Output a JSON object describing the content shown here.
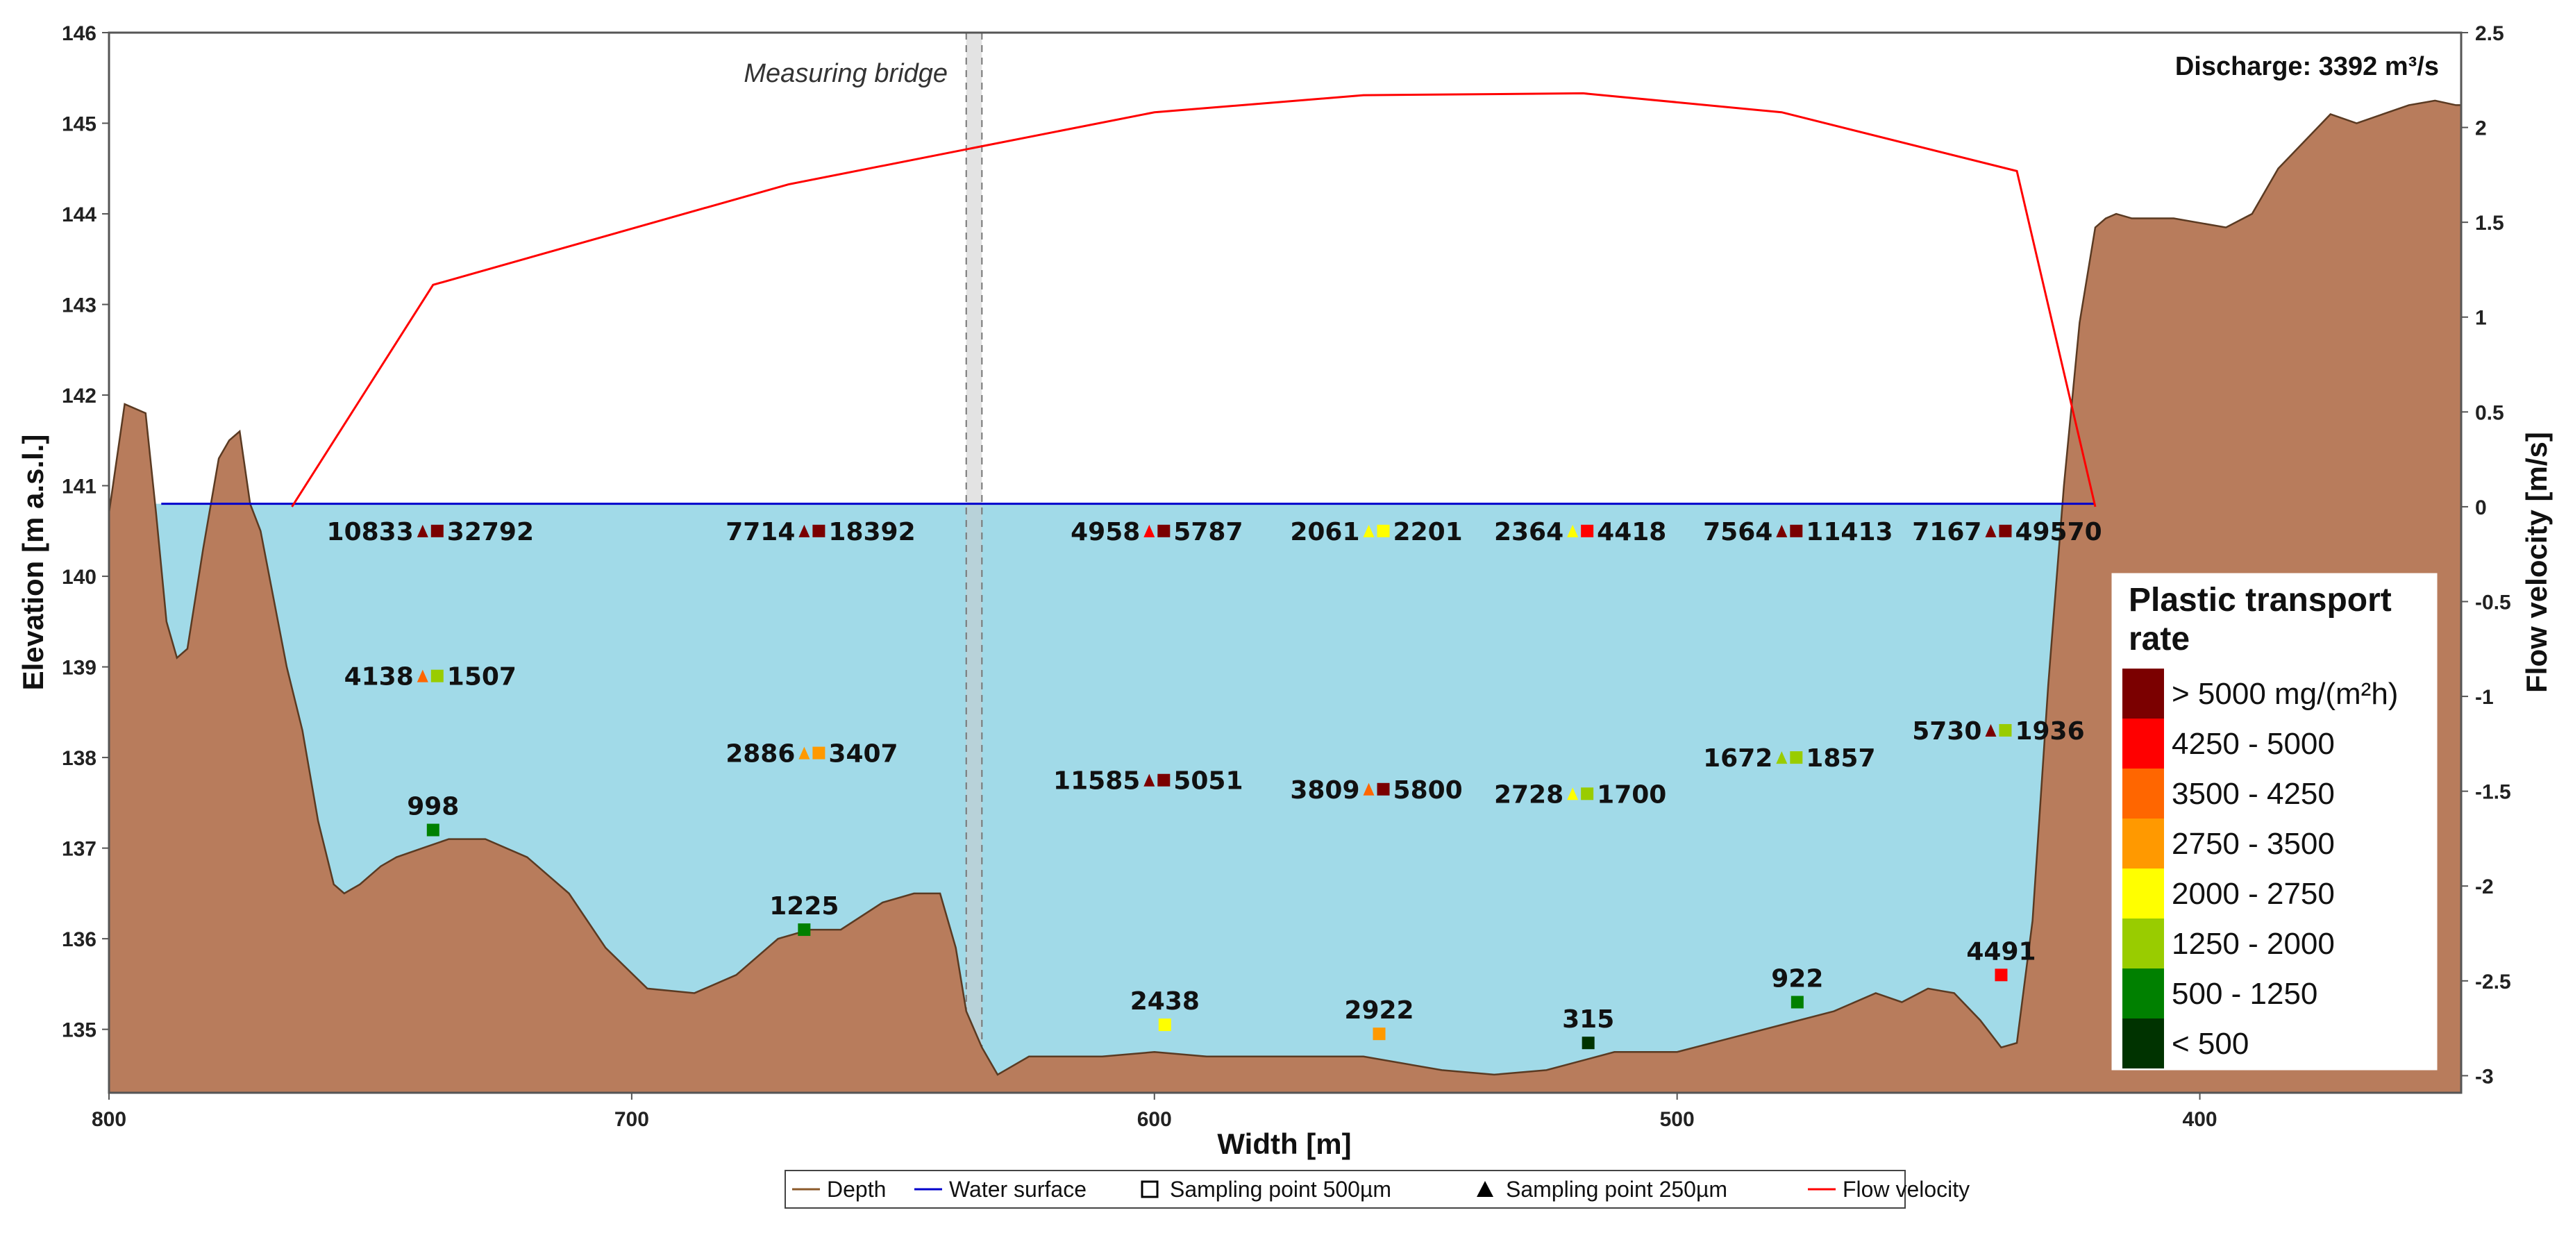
{
  "chart_data": {
    "type": "area",
    "title": "",
    "xlabel": "Width [m]",
    "ylabel": "Elevation [m a.s.l.]",
    "y2label": "Flow velocity [m/s]",
    "xlim": [
      800,
      350
    ],
    "ylim": [
      134.3,
      146
    ],
    "y2lim": [
      -3.09,
      2.5
    ],
    "x_ticks": [
      800,
      700,
      600,
      500,
      400
    ],
    "y_ticks": [
      135,
      136,
      137,
      138,
      139,
      140,
      141,
      142,
      143,
      144,
      145,
      146
    ],
    "y2_ticks": [
      2.5,
      2,
      1.5,
      1,
      0.5,
      0,
      -0.5,
      -1,
      -1.5,
      -2,
      -2.5,
      -3
    ],
    "water_surface_elevation": 140.8,
    "measuring_bridge_x": [
      636,
      633
    ],
    "discharge_label": "Discharge: 3392 m³/s",
    "bridge_label": "Measuring bridge",
    "depth_profile": {
      "x": [
        800,
        797,
        793,
        791,
        789,
        787,
        785,
        782,
        779,
        777,
        775,
        773,
        771,
        769,
        766,
        763,
        760,
        757,
        755,
        752,
        748,
        745,
        740,
        735,
        728,
        720,
        712,
        705,
        697,
        688,
        680,
        672,
        666,
        660,
        652,
        646,
        641,
        638,
        636,
        633,
        630,
        624,
        610,
        600,
        590,
        575,
        560,
        545,
        535,
        525,
        512,
        500,
        490,
        480,
        470,
        462,
        457,
        452,
        447,
        442,
        438,
        435,
        432,
        429,
        426,
        423,
        420,
        418,
        416,
        413,
        410,
        405,
        400,
        395,
        390,
        385,
        380,
        375,
        370,
        365,
        360,
        355,
        351
      ],
      "y": [
        140.7,
        141.9,
        141.8,
        140.7,
        139.5,
        139.1,
        139.2,
        140.3,
        141.3,
        141.5,
        141.6,
        140.8,
        140.5,
        139.9,
        139.0,
        138.3,
        137.3,
        136.6,
        136.5,
        136.6,
        136.8,
        136.9,
        137.0,
        137.1,
        137.1,
        136.9,
        136.5,
        135.9,
        135.45,
        135.4,
        135.6,
        136.0,
        136.1,
        136.1,
        136.4,
        136.5,
        136.5,
        135.9,
        135.2,
        134.8,
        134.5,
        134.7,
        134.7,
        134.75,
        134.7,
        134.7,
        134.7,
        134.55,
        134.5,
        134.55,
        134.75,
        134.75,
        134.9,
        135.05,
        135.2,
        135.4,
        135.3,
        135.45,
        135.4,
        135.1,
        134.8,
        134.85,
        136.2,
        138.8,
        141.0,
        142.8,
        143.85,
        143.95,
        144.0,
        143.95,
        143.95,
        143.95,
        143.9,
        143.85,
        144.0,
        144.5,
        144.8,
        145.1,
        145.0,
        145.1,
        145.2,
        145.25,
        145.2
      ]
    },
    "flow_velocity": {
      "x": [
        765,
        738,
        670,
        600,
        560,
        518,
        480,
        435,
        420
      ],
      "y": [
        0,
        1.17,
        1.7,
        2.08,
        2.17,
        2.18,
        2.08,
        1.77,
        0
      ]
    },
    "sampling_pairs": [
      {
        "x": 738,
        "y": 140.5,
        "label250": "10833",
        "label500": "32792",
        "c250": "#7b0000",
        "c500": "#7b0000"
      },
      {
        "x": 665,
        "y": 140.5,
        "label250": "7714",
        "label500": "18392",
        "c250": "#7b0000",
        "c500": "#7b0000"
      },
      {
        "x": 599,
        "y": 140.5,
        "label250": "4958",
        "label500": "5787",
        "c250": "#ff0000",
        "c500": "#7b0000"
      },
      {
        "x": 557,
        "y": 140.5,
        "label250": "2061",
        "label500": "2201",
        "c250": "#ffff00",
        "c500": "#ffff00"
      },
      {
        "x": 518,
        "y": 140.5,
        "label250": "2364",
        "label500": "4418",
        "c250": "#ffff00",
        "c500": "#ff0000"
      },
      {
        "x": 478,
        "y": 140.5,
        "label250": "7564",
        "label500": "11413",
        "c250": "#7b0000",
        "c500": "#7b0000"
      },
      {
        "x": 438,
        "y": 140.5,
        "label250": "7167",
        "label500": "49570",
        "c250": "#7b0000",
        "c500": "#7b0000"
      },
      {
        "x": 738,
        "y": 138.9,
        "label250": "4138",
        "label500": "1507",
        "c250": "#ff6600",
        "c500": "#99cc00"
      },
      {
        "x": 665,
        "y": 138.05,
        "label250": "2886",
        "label500": "3407",
        "c250": "#ff9900",
        "c500": "#ff9900"
      },
      {
        "x": 599,
        "y": 137.75,
        "label250": "11585",
        "label500": "5051",
        "c250": "#7b0000",
        "c500": "#7b0000"
      },
      {
        "x": 557,
        "y": 137.65,
        "label250": "3809",
        "label500": "5800",
        "c250": "#ff6600",
        "c500": "#7b0000"
      },
      {
        "x": 518,
        "y": 137.6,
        "label250": "2728",
        "label500": "1700",
        "c250": "#ffff00",
        "c500": "#99cc00"
      },
      {
        "x": 478,
        "y": 138.0,
        "label250": "1672",
        "label500": "1857",
        "c250": "#99cc00",
        "c500": "#99cc00"
      },
      {
        "x": 438,
        "y": 138.3,
        "label250": "5730",
        "label500": "1936",
        "c250": "#7b0000",
        "c500": "#99cc00"
      }
    ],
    "sampling_singles": [
      {
        "x": 738,
        "y": 137.2,
        "label": "998",
        "color": "#008000"
      },
      {
        "x": 667,
        "y": 136.1,
        "label": "1225",
        "color": "#008000"
      },
      {
        "x": 598,
        "y": 135.05,
        "label": "2438",
        "color": "#ffff00"
      },
      {
        "x": 557,
        "y": 134.95,
        "label": "2922",
        "color": "#ff9900"
      },
      {
        "x": 517,
        "y": 134.85,
        "label": "315",
        "color": "#003300"
      },
      {
        "x": 477,
        "y": 135.3,
        "label": "922",
        "color": "#008000"
      },
      {
        "x": 438,
        "y": 135.6,
        "label": "4491",
        "color": "#ff0000"
      }
    ],
    "color_legend": {
      "title_line1": "Plastic transport",
      "title_line2": "rate",
      "entries": [
        {
          "label": "> 5000 mg/(m²h)",
          "color": "#7b0000"
        },
        {
          "label": "4250 - 5000",
          "color": "#ff0000"
        },
        {
          "label": "3500 - 4250",
          "color": "#ff6600"
        },
        {
          "label": "2750 - 3500",
          "color": "#ff9900"
        },
        {
          "label": "2000 - 2750",
          "color": "#ffff00"
        },
        {
          "label": "1250 - 2000",
          "color": "#99cc00"
        },
        {
          "label": "500 - 1250",
          "color": "#008000"
        },
        {
          "label": "< 500",
          "color": "#003300"
        }
      ]
    },
    "key_legend": [
      {
        "name": "Depth",
        "type": "line",
        "color": "#8b5a2b"
      },
      {
        "name": "Water surface",
        "type": "line",
        "color": "#0000cc"
      },
      {
        "name": "Sampling point 500µm",
        "type": "square",
        "color": "#000000"
      },
      {
        "name": "Sampling point 250µm",
        "type": "triangle",
        "color": "#000000"
      },
      {
        "name": "Flow velocity",
        "type": "line",
        "color": "#ff0000"
      }
    ],
    "colors": {
      "ground": "#b87c5c",
      "ground_edge": "#5a3a22",
      "water": "#a1dae8",
      "water_line": "#0000cc",
      "velocity_line": "#ff0000",
      "bridge": "#cccccc"
    }
  }
}
